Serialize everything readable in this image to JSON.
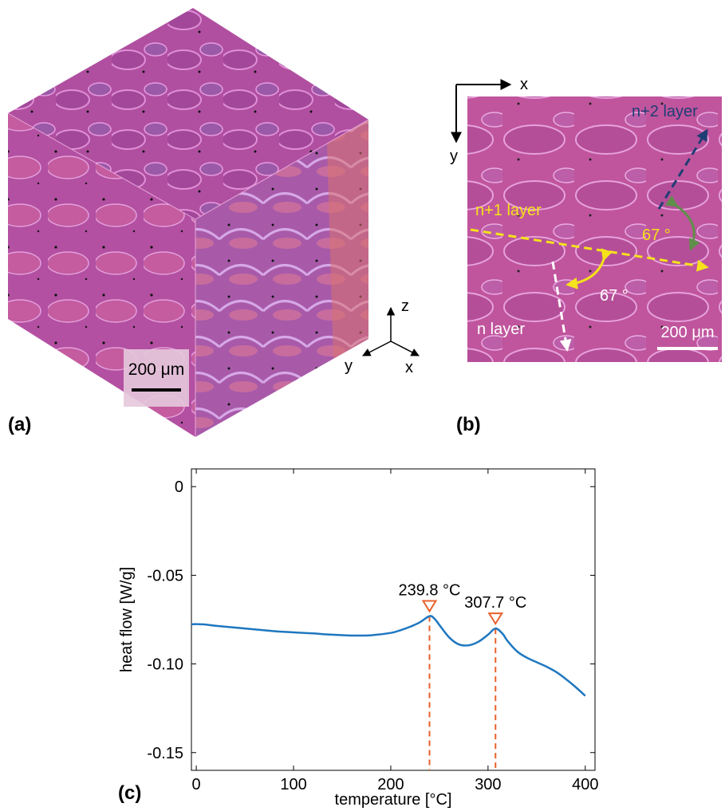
{
  "figure": {
    "panels": {
      "a": {
        "label": "(a)",
        "scale_bar": "200 μm",
        "axes": {
          "x": "x",
          "y": "y",
          "z": "z"
        }
      },
      "b": {
        "label": "(b)",
        "scale_bar": "200 μm",
        "axes": {
          "x": "x",
          "y": "y"
        },
        "annotations": {
          "n_layer": "n layer",
          "n1_layer": "n+1 layer",
          "n2_layer": "n+2 layer",
          "angle_lower": "67 °",
          "angle_upper": "67 °"
        },
        "colors": {
          "n_layer": "#ffffff",
          "n1_layer": "#f5e21a",
          "n2_layer": "#1f3e73",
          "angle_arc_upper": "#5f8f4a"
        }
      },
      "c": {
        "label": "(c)"
      }
    }
  },
  "chart_data": {
    "type": "line",
    "xlabel": "temperature [°C]",
    "ylabel": "heat flow [W/g]",
    "xlim": [
      -5,
      410
    ],
    "ylim": [
      -0.16,
      0.01
    ],
    "xticks": [
      0,
      100,
      200,
      300,
      400
    ],
    "xtick_labels": [
      "0",
      "100",
      "200",
      "300",
      "400"
    ],
    "yticks": [
      0,
      -0.05,
      -0.1,
      -0.15
    ],
    "ytick_labels": [
      "0",
      "-0.05",
      "-0.10",
      "-0.15"
    ],
    "grid": false,
    "line_color": "#1f77c0",
    "marker_color": "#e8602c",
    "x": [
      -5,
      0,
      10,
      20,
      40,
      60,
      80,
      100,
      120,
      140,
      160,
      180,
      200,
      210,
      220,
      230,
      239.8,
      245,
      250,
      260,
      270,
      280,
      290,
      300,
      307.7,
      315,
      320,
      330,
      340,
      350,
      360,
      370,
      380,
      390,
      400
    ],
    "y": [
      -0.0777,
      -0.0775,
      -0.0778,
      -0.0785,
      -0.0795,
      -0.0805,
      -0.0815,
      -0.0822,
      -0.0828,
      -0.0835,
      -0.084,
      -0.0838,
      -0.0825,
      -0.081,
      -0.079,
      -0.0765,
      -0.073,
      -0.0745,
      -0.078,
      -0.085,
      -0.089,
      -0.0895,
      -0.0875,
      -0.0835,
      -0.08,
      -0.083,
      -0.087,
      -0.093,
      -0.0965,
      -0.099,
      -0.1015,
      -0.1045,
      -0.1085,
      -0.113,
      -0.118
    ],
    "peaks": [
      {
        "x": 239.8,
        "y": -0.073,
        "label": "239.8 °C"
      },
      {
        "x": 307.7,
        "y": -0.08,
        "label": "307.7 °C"
      }
    ]
  }
}
